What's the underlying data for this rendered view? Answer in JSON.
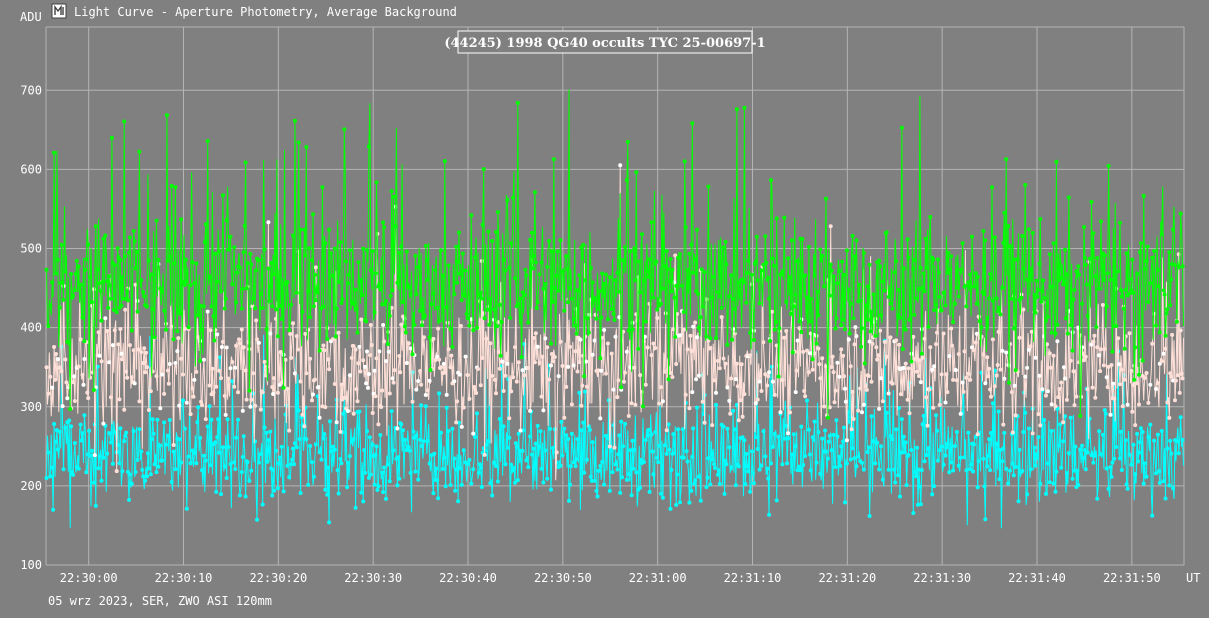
{
  "window": {
    "title": "Light Curve - Aperture Photometry, Average Background",
    "icon": "light-curve-app-icon"
  },
  "footer": {
    "text": "05 wrz 2023, SER, ZWO ASI 120mm"
  },
  "colors": {
    "background": "#808080",
    "grid": "#b4b4b4",
    "axis_text": "#ffffff",
    "title_box_bg": "#808080",
    "title_box_border": "#ffffff"
  },
  "chart_data": {
    "type": "line",
    "title": "(44245) 1998 QG40 occults TYC 25-00697-1",
    "ylabel": "ADU",
    "xlabel": "UT",
    "ylim": [
      100,
      780
    ],
    "yticks": [
      100,
      200,
      300,
      400,
      500,
      600,
      700
    ],
    "xlim": [
      "22:29:55.5",
      "22:31:55.5"
    ],
    "xticks": [
      "22:30:00",
      "22:30:10",
      "22:30:20",
      "22:30:30",
      "22:30:40",
      "22:30:50",
      "22:31:00",
      "22:31:10",
      "22:31:20",
      "22:31:30",
      "22:31:40",
      "22:31:50"
    ],
    "grid": true,
    "series": [
      {
        "color": "#00ff00",
        "mean": 455,
        "spread": 42,
        "spike_prob": 0.09,
        "spike_size": 115,
        "samples": 1200
      },
      {
        "color": "#ffe0d8",
        "mean": 352,
        "spread": 38,
        "spike_prob": 0.08,
        "spike_size": 95,
        "samples": 1200,
        "highlight_color": "#ffffff"
      },
      {
        "color": "#00ffff",
        "mean": 240,
        "spread": 30,
        "spike_prob": 0.07,
        "spike_size": 75,
        "samples": 1200
      }
    ]
  }
}
